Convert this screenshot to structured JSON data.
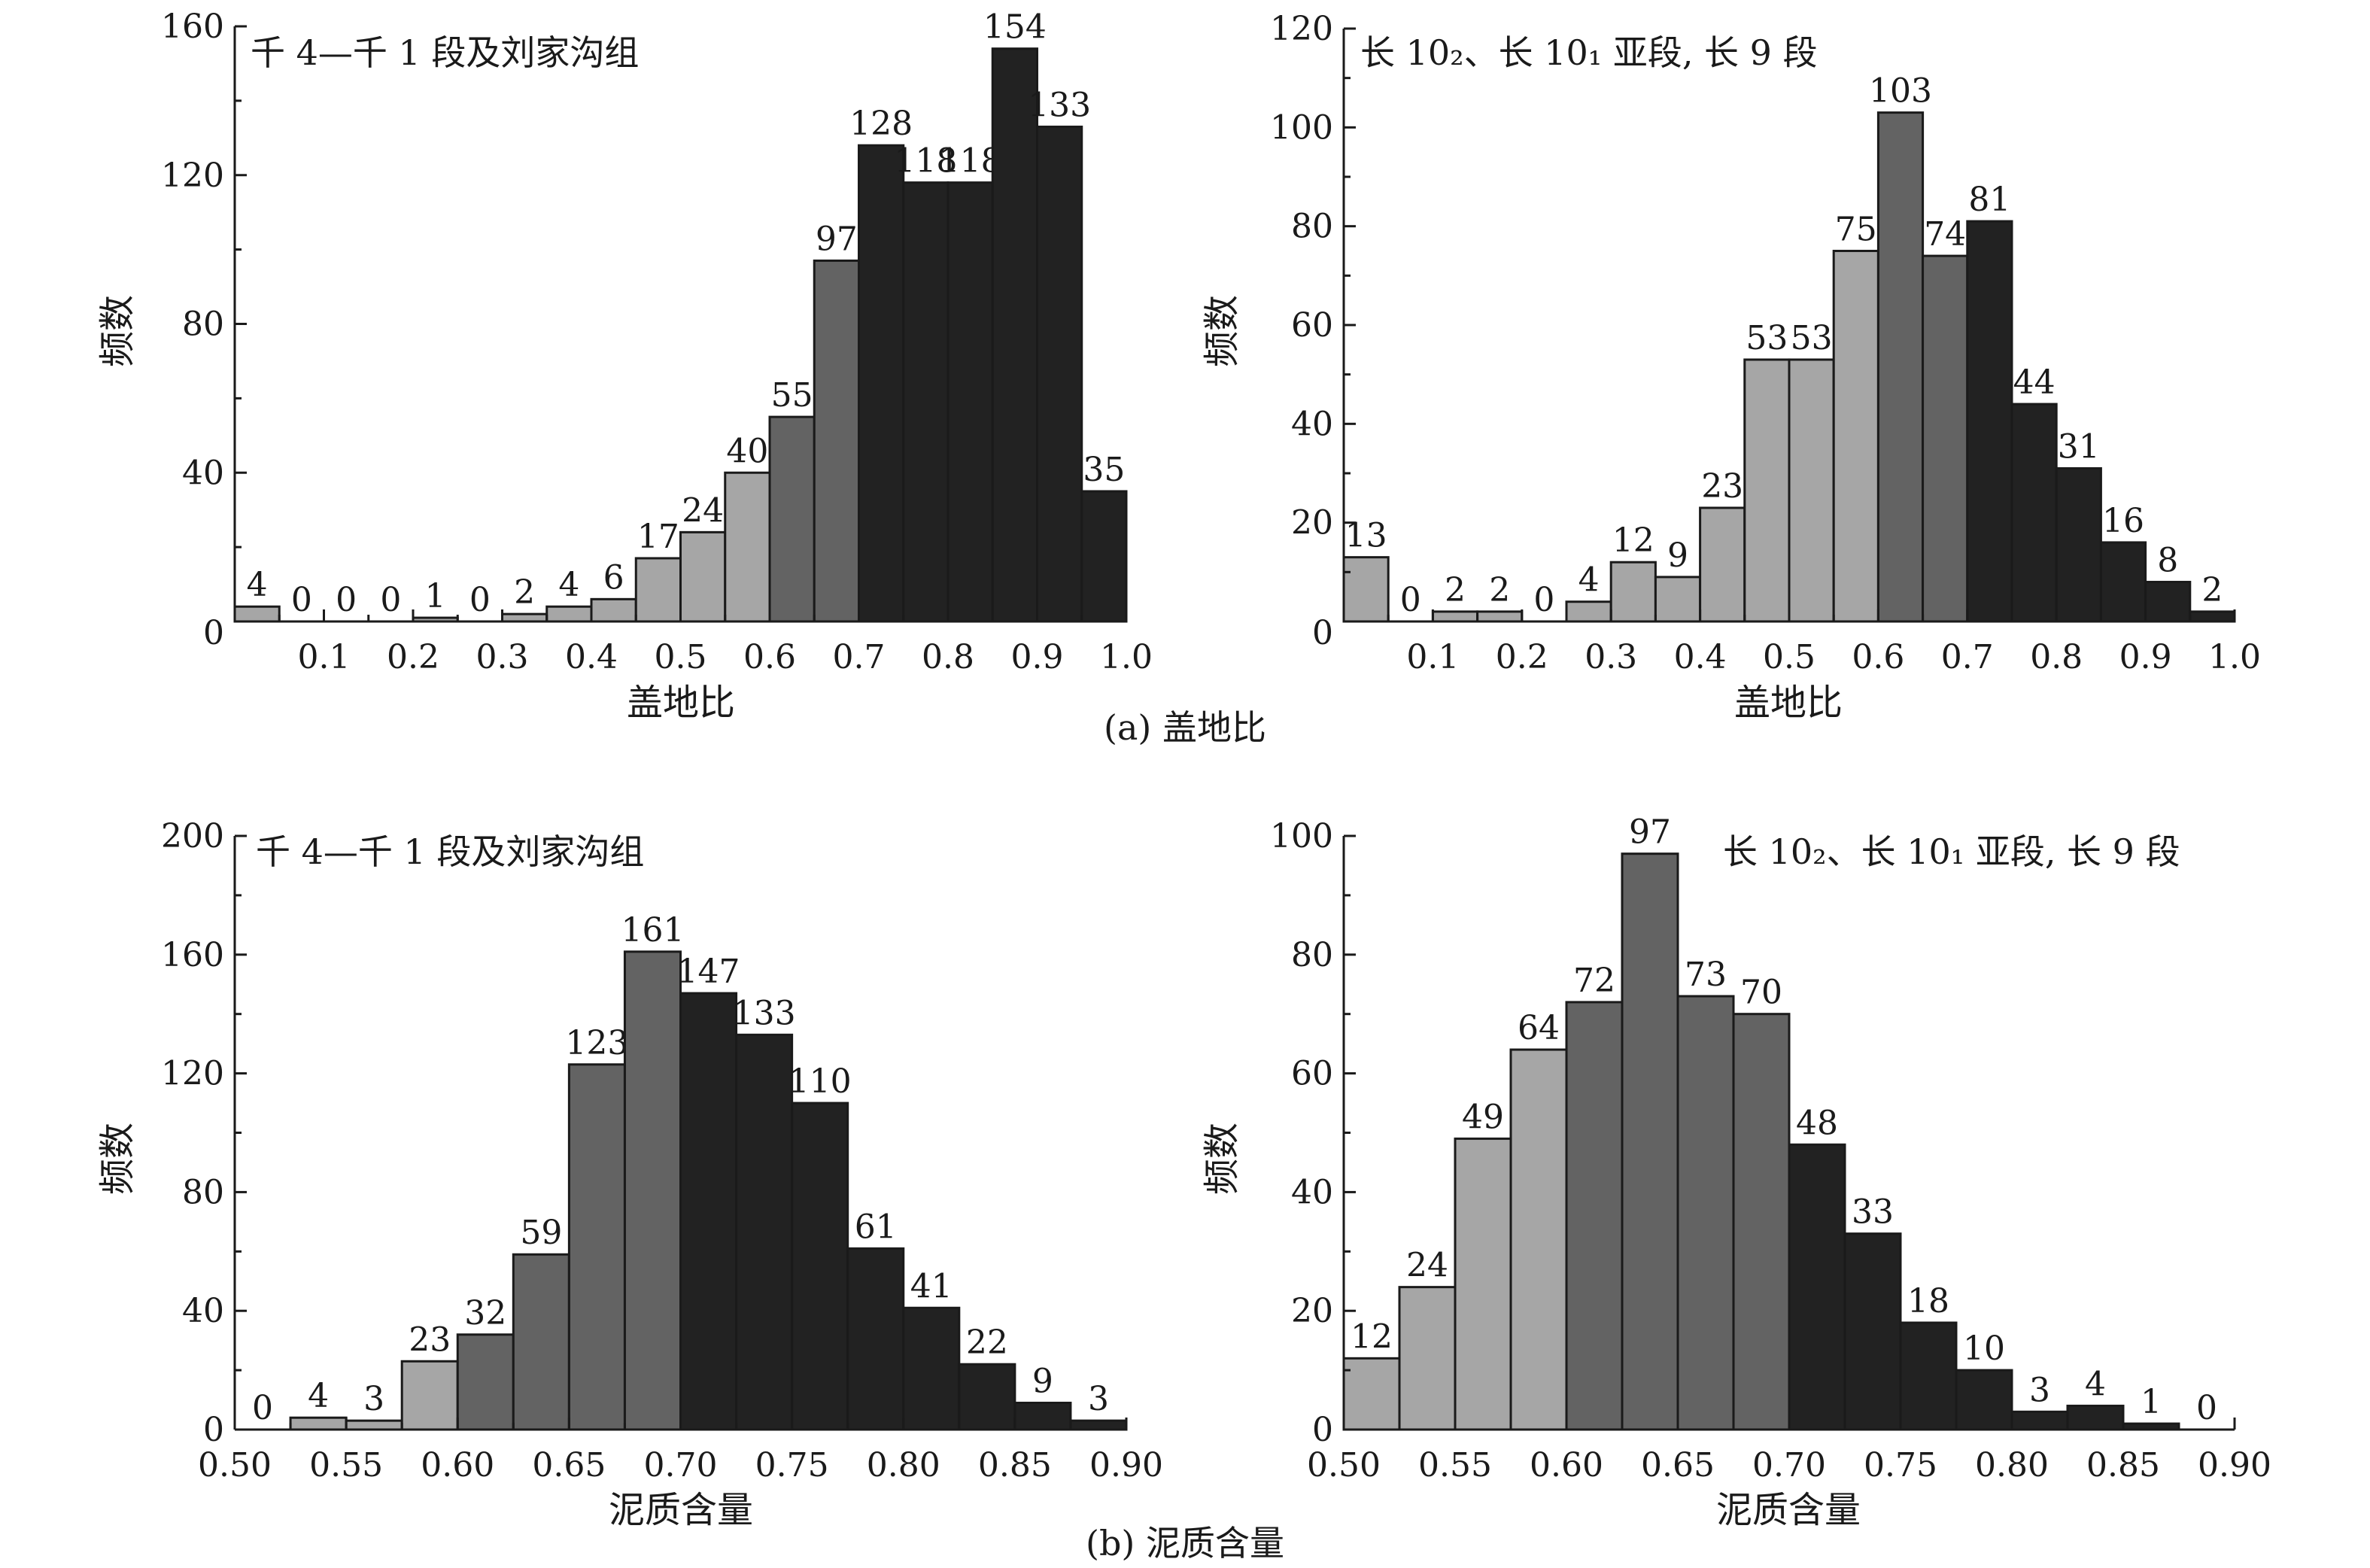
{
  "captions": {
    "a": "(a) 盖地比",
    "b": "(b) 泥质含量"
  },
  "colors": {
    "light": "#a6a6a6",
    "mid": "#636363",
    "dark": "#222222"
  },
  "chart_data": [
    {
      "id": "a-left",
      "type": "bar",
      "title": "千 4—千 1 段及刘家沟组",
      "xlabel": "盖地比",
      "ylabel": "频数",
      "xlim": [
        0,
        1.0
      ],
      "ylim": [
        0,
        160
      ],
      "xticks": [
        "0.1",
        "0.2",
        "0.3",
        "0.4",
        "0.5",
        "0.6",
        "0.7",
        "0.8",
        "0.9",
        "1.0"
      ],
      "xtick_values": [
        0.1,
        0.2,
        0.3,
        0.4,
        0.5,
        0.6,
        0.7,
        0.8,
        0.9,
        1.0
      ],
      "yticks": [
        "40",
        "80",
        "120",
        "160"
      ],
      "ytick_values": [
        40,
        80,
        120,
        160
      ],
      "origin_label": "0",
      "bin_width": 0.05,
      "bins_start": 0,
      "values": [
        4,
        0,
        0,
        0,
        1,
        0,
        2,
        4,
        6,
        17,
        24,
        40,
        55,
        97,
        128,
        118,
        118,
        154,
        133,
        35
      ],
      "labels": [
        "4",
        "0",
        "0",
        "0",
        "1",
        "0",
        "2",
        "4",
        "6",
        "17",
        "24",
        "40",
        "55",
        "97",
        "128",
        "118",
        "118",
        "154",
        "133",
        "35"
      ],
      "shades": [
        "light",
        "light",
        "light",
        "light",
        "light",
        "light",
        "light",
        "light",
        "light",
        "light",
        "light",
        "light",
        "mid",
        "mid",
        "dark",
        "dark",
        "dark",
        "dark",
        "dark",
        "dark"
      ],
      "label_overrides": {
        "15": {
          "dx": 0,
          "dy": 0
        },
        "16": {
          "dx": 0,
          "dy": 0
        }
      }
    },
    {
      "id": "a-right",
      "type": "bar",
      "title": "长 10₂、长 10₁ 亚段, 长 9 段",
      "xlabel": "盖地比",
      "ylabel": "频数",
      "xlim": [
        0,
        1.0
      ],
      "ylim": [
        0,
        120
      ],
      "xticks": [
        "0.1",
        "0.2",
        "0.3",
        "0.4",
        "0.5",
        "0.6",
        "0.7",
        "0.8",
        "0.9",
        "1.0"
      ],
      "xtick_values": [
        0.1,
        0.2,
        0.3,
        0.4,
        0.5,
        0.6,
        0.7,
        0.8,
        0.9,
        1.0
      ],
      "yticks": [
        "20",
        "40",
        "60",
        "80",
        "100",
        "120"
      ],
      "ytick_values": [
        20,
        40,
        60,
        80,
        100,
        120
      ],
      "origin_label": "0",
      "bin_width": 0.05,
      "bins_start": 0,
      "values": [
        13,
        0,
        2,
        2,
        0,
        4,
        12,
        9,
        23,
        53,
        53,
        75,
        103,
        74,
        81,
        44,
        31,
        16,
        8,
        2
      ],
      "labels": [
        "13",
        "0",
        "2",
        "2",
        "0",
        "4",
        "12",
        "9",
        "23",
        "53",
        "53",
        "75",
        "103",
        "74",
        "81",
        "44",
        "31",
        "16",
        "8",
        "2"
      ],
      "shades": [
        "light",
        "light",
        "light",
        "light",
        "light",
        "light",
        "light",
        "light",
        "light",
        "light",
        "light",
        "light",
        "mid",
        "mid",
        "dark",
        "dark",
        "dark",
        "dark",
        "dark",
        "dark"
      ]
    },
    {
      "id": "b-left",
      "type": "bar",
      "title": "千 4—千 1 段及刘家沟组",
      "xlabel": "泥质含量",
      "ylabel": "频数",
      "xlim": [
        0.5,
        0.9
      ],
      "ylim": [
        0,
        200
      ],
      "xticks": [
        "0.50",
        "0.55",
        "0.60",
        "0.65",
        "0.70",
        "0.75",
        "0.80",
        "0.85",
        "0.90"
      ],
      "xtick_values": [
        0.5,
        0.55,
        0.6,
        0.65,
        0.7,
        0.75,
        0.8,
        0.85,
        0.9
      ],
      "yticks": [
        "0",
        "40",
        "80",
        "120",
        "160",
        "200"
      ],
      "ytick_values": [
        0,
        40,
        80,
        120,
        160,
        200
      ],
      "origin_label": "",
      "bin_width": 0.025,
      "bins_start": 0.5,
      "values": [
        0,
        4,
        3,
        23,
        32,
        59,
        123,
        161,
        147,
        133,
        110,
        61,
        41,
        22,
        9,
        3
      ],
      "labels": [
        "0",
        "4",
        "3",
        "23",
        "32",
        "59",
        "123",
        "161",
        "147",
        "133",
        "110",
        "61",
        "41",
        "22",
        "9",
        "3"
      ],
      "shades": [
        "light",
        "light",
        "light",
        "light",
        "mid",
        "mid",
        "mid",
        "mid",
        "dark",
        "dark",
        "dark",
        "dark",
        "dark",
        "dark",
        "dark",
        "dark"
      ]
    },
    {
      "id": "b-right",
      "type": "bar",
      "title": "长 10₂、长 10₁ 亚段, 长 9 段",
      "xlabel": "泥质含量",
      "ylabel": "频数",
      "xlim": [
        0.5,
        0.9
      ],
      "ylim": [
        0,
        100
      ],
      "xticks": [
        "0.50",
        "0.55",
        "0.60",
        "0.65",
        "0.70",
        "0.75",
        "0.80",
        "0.85",
        "0.90"
      ],
      "xtick_values": [
        0.5,
        0.55,
        0.6,
        0.65,
        0.7,
        0.75,
        0.8,
        0.85,
        0.9
      ],
      "yticks": [
        "0",
        "20",
        "40",
        "60",
        "80",
        "100"
      ],
      "ytick_values": [
        0,
        20,
        40,
        60,
        80,
        100
      ],
      "origin_label": "",
      "bin_width": 0.025,
      "bins_start": 0.5,
      "values": [
        12,
        24,
        49,
        64,
        72,
        97,
        73,
        70,
        48,
        33,
        18,
        10,
        3,
        4,
        1,
        0
      ],
      "labels": [
        "12",
        "24",
        "49",
        "64",
        "72",
        "97",
        "73",
        "70",
        "48",
        "33",
        "18",
        "10",
        "3",
        "4",
        "1",
        "0"
      ],
      "shades": [
        "light",
        "light",
        "light",
        "light",
        "mid",
        "mid",
        "mid",
        "mid",
        "dark",
        "dark",
        "dark",
        "dark",
        "dark",
        "dark",
        "dark",
        "dark"
      ]
    }
  ]
}
